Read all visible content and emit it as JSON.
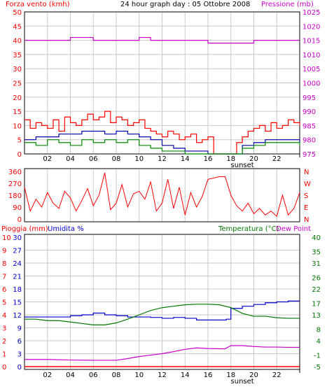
{
  "header": {
    "left_title": "Forza vento (kmh)",
    "center_title": "24 hour graph day : 05 Ottobre 2008",
    "right_title": "Pressione (mb)"
  },
  "colors": {
    "wind": "#ff0000",
    "pressure": "#cc00cc",
    "direction": "#ff0000",
    "humidity": "#0000cc",
    "temperature": "#007700",
    "dewpoint": "#cc00cc",
    "rain": "#ff0000",
    "gust_avg": "#0000aa",
    "wind_green": "#008800",
    "grid": "#c8c8c8",
    "frame": "#000000"
  },
  "chart_data": [
    {
      "type": "line",
      "panel": "wind_pressure",
      "title": "",
      "x_ticks": [
        "02",
        "04",
        "06",
        "08",
        "10",
        "12",
        "14",
        "16",
        "18",
        "20",
        "22"
      ],
      "x_annotation": "sunset",
      "y_left": {
        "label": "Forza vento (kmh)",
        "ticks": [
          0,
          5,
          10,
          15,
          20,
          25,
          30,
          35,
          40,
          45,
          50
        ],
        "ylim": [
          0,
          50
        ]
      },
      "y_right": {
        "label": "Pressione (mb)",
        "ticks": [
          975,
          980,
          985,
          990,
          995,
          1000,
          1005,
          1010,
          1015,
          1020,
          1025
        ],
        "ylim": [
          975,
          1025
        ]
      },
      "series": [
        {
          "name": "pressure",
          "axis": "right",
          "x": [
            0,
            4,
            4,
            6,
            6,
            10,
            10,
            11,
            11,
            13,
            13,
            16,
            16,
            20,
            20,
            24
          ],
          "values": [
            1015,
            1015,
            1016,
            1016,
            1015,
            1015,
            1016,
            1016,
            1015,
            1015,
            1015,
            1015,
            1014,
            1014,
            1015,
            1015
          ]
        },
        {
          "name": "wind_red",
          "axis": "left",
          "x": [
            0,
            0.5,
            1,
            1.5,
            2,
            2.5,
            3,
            3.5,
            4,
            4.5,
            5,
            5.5,
            6,
            6.5,
            7,
            7.5,
            8,
            8.5,
            9,
            9.5,
            10,
            10.5,
            11,
            11.5,
            12,
            12.5,
            13,
            13.5,
            14,
            14.5,
            15,
            15.5,
            16,
            16.5,
            17,
            17.5,
            18,
            18.5,
            19,
            19.5,
            20,
            20.5,
            21,
            21.5,
            22,
            22.5,
            23,
            23.5,
            24
          ],
          "values": [
            12,
            9,
            11,
            10,
            9,
            12,
            8,
            13,
            11,
            10,
            12,
            14,
            12,
            13,
            15,
            11,
            13,
            12,
            10,
            11,
            12,
            9,
            8,
            7,
            6,
            8,
            7,
            5,
            6,
            7,
            4,
            5,
            6,
            0,
            0,
            0,
            0,
            4,
            6,
            8,
            9,
            10,
            8,
            11,
            9,
            10,
            12,
            11,
            10
          ]
        },
        {
          "name": "wind_blue",
          "axis": "left",
          "x": [
            0,
            1,
            2,
            3,
            4,
            5,
            6,
            7,
            8,
            9,
            10,
            11,
            12,
            13,
            14,
            15,
            16,
            17,
            18,
            19,
            20,
            21,
            22,
            23,
            24
          ],
          "values": [
            5,
            6,
            6,
            7,
            7,
            8,
            8,
            7,
            8,
            7,
            6,
            5,
            3,
            2,
            1,
            1,
            0,
            0,
            0,
            3,
            4,
            5,
            5,
            5,
            4
          ]
        },
        {
          "name": "wind_green",
          "axis": "left",
          "x": [
            0,
            1,
            2,
            3,
            4,
            5,
            6,
            7,
            8,
            9,
            10,
            11,
            12,
            13,
            14,
            15,
            16,
            17,
            18,
            19,
            20,
            21,
            22,
            23,
            24
          ],
          "values": [
            4,
            3,
            5,
            4,
            3,
            5,
            4,
            5,
            4,
            5,
            3,
            2,
            1,
            1,
            0,
            0,
            0,
            0,
            0,
            2,
            3,
            4,
            4,
            4,
            3
          ]
        }
      ]
    },
    {
      "type": "line",
      "panel": "wind_direction",
      "x_ticks": [],
      "y_left": {
        "ticks": [
          0,
          90,
          180,
          270,
          360
        ],
        "ylim": [
          0,
          360
        ]
      },
      "y_right_labels": [
        "N",
        "W",
        "S",
        "E",
        "N"
      ],
      "series": [
        {
          "name": "direction",
          "axis": "left",
          "x": [
            0,
            0.5,
            1,
            1.5,
            2,
            2.5,
            3,
            3.5,
            4,
            4.5,
            5,
            5.5,
            6,
            6.5,
            7,
            7.5,
            8,
            8.5,
            9,
            9.5,
            10,
            10.5,
            11,
            11.5,
            12,
            12.5,
            13,
            13.5,
            14,
            14.5,
            15,
            15.5,
            16,
            16.5,
            17,
            17.5,
            18,
            18.5,
            19,
            19.5,
            20,
            20.5,
            21,
            21.5,
            22,
            22.5,
            23,
            23.5,
            24
          ],
          "values": [
            240,
            60,
            150,
            90,
            200,
            120,
            80,
            210,
            160,
            60,
            140,
            230,
            100,
            180,
            350,
            70,
            120,
            260,
            90,
            190,
            210,
            150,
            280,
            60,
            120,
            300,
            80,
            240,
            30,
            200,
            90,
            170,
            300,
            310,
            320,
            320,
            180,
            100,
            60,
            120,
            40,
            80,
            30,
            60,
            20,
            180,
            30,
            80,
            200
          ]
        }
      ]
    },
    {
      "type": "line",
      "panel": "rain_humidity_temperature",
      "x_ticks": [
        "02",
        "04",
        "06",
        "08",
        "10",
        "12",
        "14",
        "16",
        "18",
        "20",
        "22"
      ],
      "x_annotation": "sunset",
      "y_left_rain": {
        "label": "Pioggia (mm)",
        "ticks": [
          0,
          1,
          2,
          3,
          4,
          5,
          6,
          7,
          8,
          9,
          10
        ],
        "ylim": [
          0,
          10
        ]
      },
      "y_left_humidity": {
        "label": "Umidita %",
        "ticks": [
          0,
          3,
          6,
          9,
          12,
          15,
          18,
          21,
          24,
          27,
          30
        ],
        "ylim": [
          0,
          30
        ]
      },
      "y_right": {
        "label": "Temperatura (°C)",
        "ticks": [
          -5,
          -1,
          4,
          8,
          13,
          17,
          22,
          26,
          31,
          35,
          40
        ],
        "ylim": [
          -5,
          40
        ]
      },
      "extra_label": "Dew Point",
      "series": [
        {
          "name": "humidity",
          "axis": "humidity",
          "x": [
            0,
            2,
            4,
            5,
            6,
            7,
            8,
            9,
            10,
            11,
            12,
            13,
            14,
            15,
            16,
            17,
            17.6,
            18,
            19,
            20,
            21,
            22,
            23,
            24
          ],
          "values": [
            11.5,
            11.5,
            11.8,
            12.0,
            12.4,
            12.0,
            11.8,
            11.5,
            11.5,
            11.4,
            11.2,
            11.4,
            11.2,
            10.8,
            10.8,
            10.8,
            11.0,
            13.5,
            14.0,
            14.4,
            14.8,
            15.0,
            15.2,
            15.2
          ]
        },
        {
          "name": "temperature",
          "axis": "right",
          "x": [
            0,
            1,
            2,
            3,
            4,
            5,
            6,
            7,
            8,
            9,
            10,
            11,
            12,
            13,
            14,
            15,
            16,
            17,
            18,
            19,
            20,
            21,
            22,
            23,
            24
          ],
          "values": [
            11.5,
            11.5,
            11.0,
            11.0,
            10.5,
            10.0,
            9.5,
            9.5,
            10.2,
            11.5,
            13.0,
            14.5,
            15.5,
            16.0,
            16.5,
            16.7,
            16.7,
            16.5,
            15.5,
            13.5,
            12.5,
            12.5,
            12.0,
            11.8,
            11.8
          ]
        },
        {
          "name": "dew point",
          "axis": "right",
          "x": [
            0,
            2,
            4,
            6,
            8,
            9,
            10,
            11,
            12,
            13,
            14,
            15,
            16,
            17,
            17.5,
            18,
            19,
            20,
            21,
            22,
            23,
            24
          ],
          "values": [
            -2.5,
            -2.5,
            -2.7,
            -2.8,
            -2.8,
            -2.2,
            -1.5,
            -1.0,
            -0.5,
            0.2,
            1.0,
            1.5,
            1.3,
            1.2,
            1.2,
            2.3,
            2.3,
            2.0,
            1.8,
            1.8,
            1.7,
            1.7
          ]
        },
        {
          "name": "rain",
          "axis": "rain",
          "x": [
            0,
            24
          ],
          "values": [
            0,
            0
          ]
        }
      ]
    }
  ]
}
